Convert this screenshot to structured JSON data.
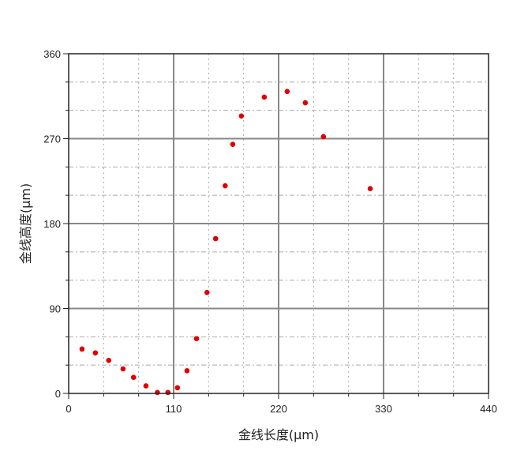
{
  "chart_data": {
    "type": "scatter",
    "title": "",
    "xlabel": "金线长度(μm)",
    "ylabel": "金线高度(μm)",
    "xlim": [
      0,
      440
    ],
    "ylim": [
      0,
      360
    ],
    "xticks": [
      0,
      110,
      220,
      330,
      440
    ],
    "yticks": [
      0,
      90,
      180,
      270,
      360
    ],
    "grid": true,
    "marker_color": "#e00000",
    "points": [
      {
        "x": 14,
        "y": 47
      },
      {
        "x": 28,
        "y": 43
      },
      {
        "x": 42,
        "y": 35
      },
      {
        "x": 57,
        "y": 26
      },
      {
        "x": 68,
        "y": 17
      },
      {
        "x": 81,
        "y": 8
      },
      {
        "x": 93,
        "y": 1
      },
      {
        "x": 104,
        "y": 1
      },
      {
        "x": 114,
        "y": 6
      },
      {
        "x": 124,
        "y": 24
      },
      {
        "x": 134,
        "y": 58
      },
      {
        "x": 145,
        "y": 107
      },
      {
        "x": 154,
        "y": 164
      },
      {
        "x": 164,
        "y": 220
      },
      {
        "x": 172,
        "y": 264
      },
      {
        "x": 181,
        "y": 294
      },
      {
        "x": 205,
        "y": 314
      },
      {
        "x": 229,
        "y": 320
      },
      {
        "x": 248,
        "y": 308
      },
      {
        "x": 267,
        "y": 272
      },
      {
        "x": 316,
        "y": 217
      }
    ]
  }
}
